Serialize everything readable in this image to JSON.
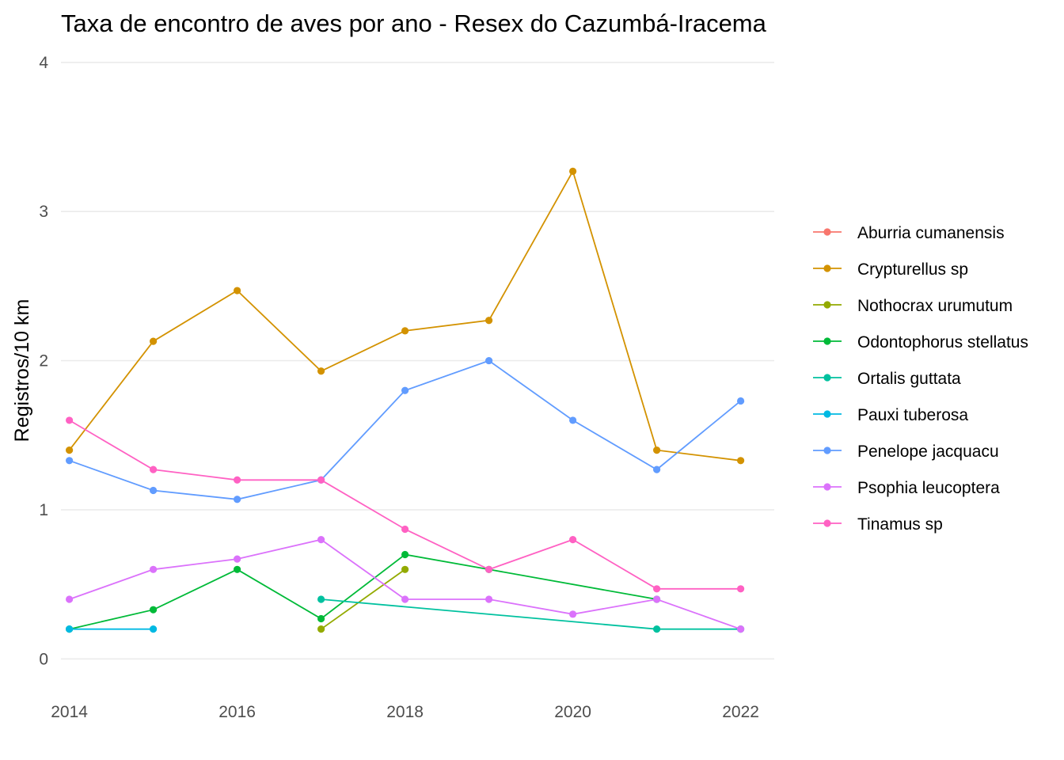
{
  "chart_data": {
    "type": "line",
    "title": "Taxa de encontro de aves por ano - Resex do Cazumbá-Iracema",
    "xlabel": "",
    "ylabel": "Registros/10 km",
    "xlim": [
      2013.9,
      2022.4
    ],
    "ylim": [
      -0.2,
      4.1
    ],
    "x_ticks": [
      2014,
      2016,
      2018,
      2020,
      2022
    ],
    "y_ticks": [
      0,
      1,
      2,
      3,
      4
    ],
    "grid": true,
    "legend_position": "right",
    "series": [
      {
        "name": "Aburria cumanensis",
        "color": "#F8766D",
        "x": [],
        "values": []
      },
      {
        "name": "Crypturellus sp",
        "color": "#D39200",
        "x": [
          2014,
          2015,
          2016,
          2017,
          2018,
          2019,
          2020,
          2021,
          2022
        ],
        "values": [
          1.4,
          2.13,
          2.47,
          1.93,
          2.2,
          2.27,
          3.27,
          1.4,
          1.33
        ]
      },
      {
        "name": "Nothocrax urumutum",
        "color": "#93AA00",
        "x": [
          2017,
          2018
        ],
        "values": [
          0.2,
          0.6
        ]
      },
      {
        "name": "Odontophorus stellatus",
        "color": "#00BA38",
        "x": [
          2014,
          2015,
          2016,
          2017,
          2018,
          2019,
          2021
        ],
        "values": [
          0.2,
          0.33,
          0.6,
          0.27,
          0.7,
          0.6,
          0.4
        ]
      },
      {
        "name": "Ortalis guttata",
        "color": "#00C19F",
        "x": [
          2017,
          2021,
          2022
        ],
        "values": [
          0.4,
          0.2,
          0.2
        ]
      },
      {
        "name": "Pauxi tuberosa",
        "color": "#00B9E3",
        "x": [
          2014,
          2015
        ],
        "values": [
          0.2,
          0.2
        ]
      },
      {
        "name": "Penelope jacquacu",
        "color": "#619CFF",
        "x": [
          2014,
          2015,
          2016,
          2017,
          2018,
          2019,
          2020,
          2021,
          2022
        ],
        "values": [
          1.33,
          1.13,
          1.07,
          1.2,
          1.8,
          2.0,
          1.6,
          1.27,
          1.73
        ]
      },
      {
        "name": "Psophia leucoptera",
        "color": "#DB72FB",
        "x": [
          2014,
          2015,
          2016,
          2017,
          2018,
          2019,
          2020,
          2021,
          2022
        ],
        "values": [
          0.4,
          0.6,
          0.67,
          0.8,
          0.4,
          0.4,
          0.3,
          0.4,
          0.2
        ]
      },
      {
        "name": "Tinamus sp",
        "color": "#FF61C3",
        "x": [
          2014,
          2015,
          2016,
          2017,
          2018,
          2019,
          2020,
          2021,
          2022
        ],
        "values": [
          1.6,
          1.27,
          1.2,
          1.2,
          0.87,
          0.6,
          0.8,
          0.47,
          0.47
        ]
      }
    ]
  }
}
